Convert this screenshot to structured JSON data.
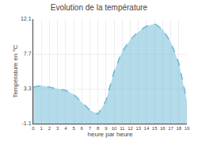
{
  "chart_data": {
    "type": "area",
    "title": "Evolution de la température",
    "xlabel": "heure par heure",
    "ylabel": "Température en °C",
    "x": [
      0,
      1,
      2,
      3,
      4,
      5,
      6,
      7,
      8,
      9,
      10,
      11,
      12,
      13,
      14,
      15,
      16,
      17,
      18,
      19
    ],
    "values": [
      3.5,
      3.7,
      3.5,
      3.3,
      3.1,
      2.6,
      1.6,
      0.6,
      0.1,
      1.8,
      5.5,
      8.0,
      9.5,
      10.5,
      11.2,
      11.5,
      10.8,
      9.2,
      6.5,
      1.8
    ],
    "color": "#6ab8d4",
    "line_style": "dashed",
    "xlim": [
      0,
      19
    ],
    "ylim": [
      -1.1,
      12.1
    ],
    "xticks": [
      0,
      1,
      2,
      3,
      4,
      5,
      6,
      7,
      8,
      9,
      10,
      11,
      12,
      13,
      14,
      15,
      16,
      17,
      18,
      19
    ],
    "yticks": [
      -1.1,
      3.3,
      7.7,
      12.1
    ],
    "grid": true
  }
}
